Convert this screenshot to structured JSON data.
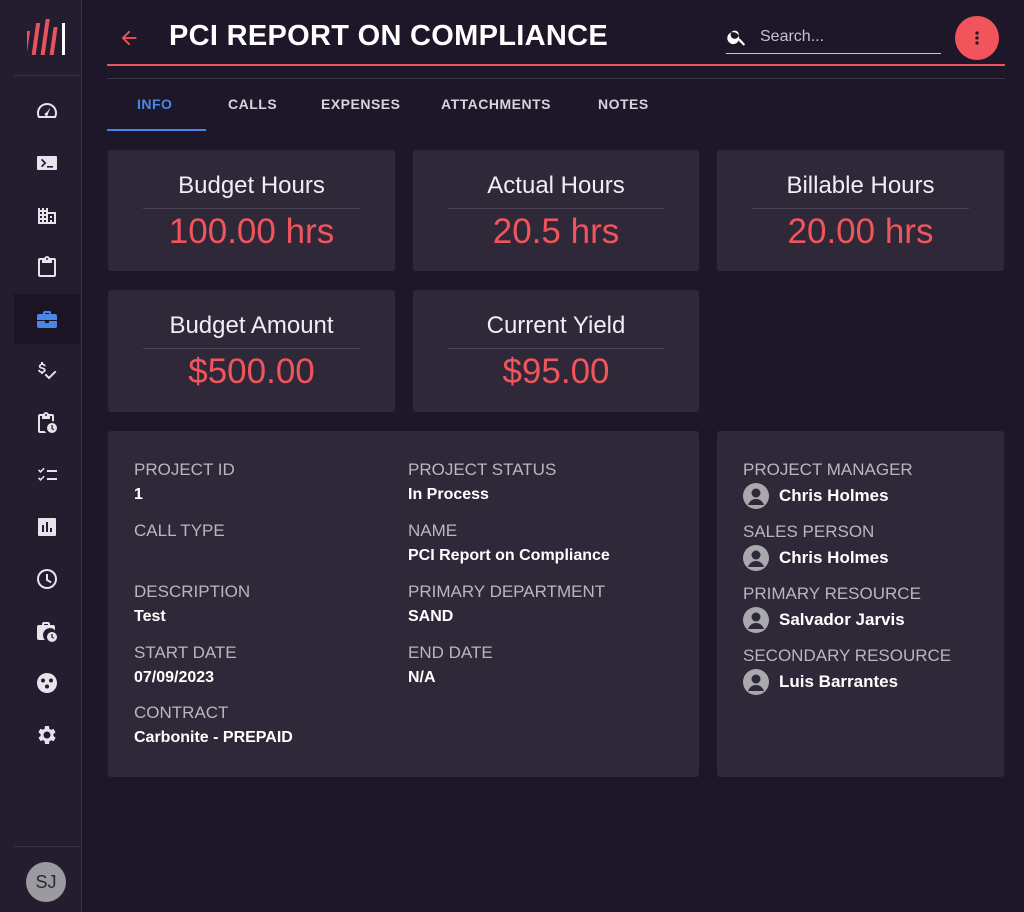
{
  "header": {
    "title": "PCI REPORT ON COMPLIANCE",
    "search_placeholder": "Search..."
  },
  "colors": {
    "accent": "#f2545b",
    "active_tab": "#4a86e8",
    "background": "#1e1729",
    "card": "#2e2839"
  },
  "sidebar": {
    "items": [
      {
        "icon": "dashboard-gauge-icon"
      },
      {
        "icon": "terminal-icon"
      },
      {
        "icon": "building-icon"
      },
      {
        "icon": "clipboard-icon"
      },
      {
        "icon": "briefcase-icon",
        "active": true
      },
      {
        "icon": "dollar-check-icon"
      },
      {
        "icon": "clipboard-clock-icon"
      },
      {
        "icon": "checklist-icon"
      },
      {
        "icon": "bar-chart-icon"
      },
      {
        "icon": "clock-icon"
      },
      {
        "icon": "briefcase-clock-icon"
      },
      {
        "icon": "groups-icon"
      },
      {
        "icon": "gear-icon"
      }
    ],
    "user_initials": "SJ"
  },
  "tabs": [
    {
      "label": "INFO",
      "active": true
    },
    {
      "label": "CALLS"
    },
    {
      "label": "EXPENSES"
    },
    {
      "label": "ATTACHMENTS"
    },
    {
      "label": "NOTES"
    }
  ],
  "metrics": [
    {
      "label": "Budget Hours",
      "value": "100.00 hrs"
    },
    {
      "label": "Actual Hours",
      "value": "20.5 hrs"
    },
    {
      "label": "Billable Hours",
      "value": "20.00 hrs"
    },
    {
      "label": "Budget Amount",
      "value": "$500.00"
    },
    {
      "label": "Current Yield",
      "value": "$95.00"
    }
  ],
  "info": {
    "project_id_label": "PROJECT ID",
    "project_id": "1",
    "project_status_label": "PROJECT STATUS",
    "project_status": "In Process",
    "call_type_label": "CALL TYPE",
    "call_type": "",
    "name_label": "NAME",
    "name": "PCI Report on Compliance",
    "description_label": "DESCRIPTION",
    "description": "Test",
    "primary_department_label": "PRIMARY DEPARTMENT",
    "primary_department": "SAND",
    "start_date_label": "START DATE",
    "start_date": "07/09/2023",
    "end_date_label": "END DATE",
    "end_date": "N/A",
    "contract_label": "CONTRACT",
    "contract": "Carbonite - PREPAID"
  },
  "people": [
    {
      "role": "PROJECT MANAGER",
      "name": "Chris Holmes"
    },
    {
      "role": "SALES PERSON",
      "name": "Chris Holmes"
    },
    {
      "role": "PRIMARY RESOURCE",
      "name": "Salvador Jarvis"
    },
    {
      "role": "SECONDARY RESOURCE",
      "name": "Luis Barrantes"
    }
  ]
}
